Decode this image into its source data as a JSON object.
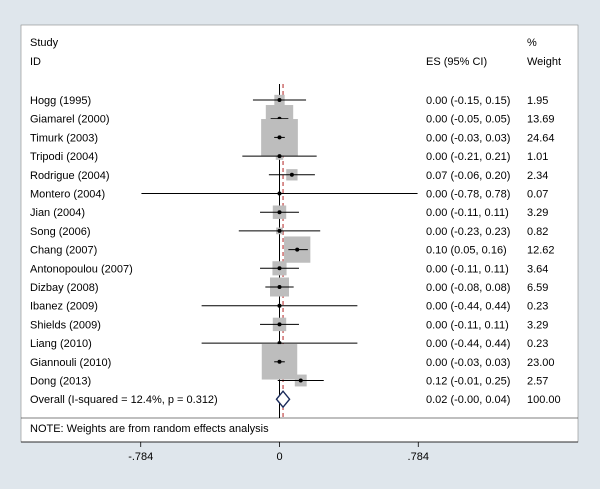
{
  "chart_data": {
    "type": "forest",
    "header": {
      "study_line1": "Study",
      "study_line2": "ID",
      "es_label": "ES (95% CI)",
      "weight_line1": "%",
      "weight_line2": "Weight"
    },
    "studies": [
      {
        "id": "Hogg (1995)",
        "es": 0.0,
        "lo": -0.15,
        "hi": 0.15,
        "es_text": "0.00 (-0.15, 0.15)",
        "weight": 1.95,
        "weight_text": "1.95"
      },
      {
        "id": "Giamarel (2000)",
        "es": 0.0,
        "lo": -0.05,
        "hi": 0.05,
        "es_text": "0.00 (-0.05, 0.05)",
        "weight": 13.69,
        "weight_text": "13.69"
      },
      {
        "id": "Timurk (2003)",
        "es": 0.0,
        "lo": -0.03,
        "hi": 0.03,
        "es_text": "0.00 (-0.03, 0.03)",
        "weight": 24.64,
        "weight_text": "24.64"
      },
      {
        "id": "Tripodi (2004)",
        "es": 0.0,
        "lo": -0.21,
        "hi": 0.21,
        "es_text": "0.00 (-0.21, 0.21)",
        "weight": 1.01,
        "weight_text": "1.01"
      },
      {
        "id": "Rodrigue (2004)",
        "es": 0.07,
        "lo": -0.06,
        "hi": 0.2,
        "es_text": "0.07 (-0.06, 0.20)",
        "weight": 2.34,
        "weight_text": "2.34"
      },
      {
        "id": "Montero (2004)",
        "es": 0.0,
        "lo": -0.78,
        "hi": 0.78,
        "es_text": "0.00 (-0.78, 0.78)",
        "weight": 0.07,
        "weight_text": "0.07"
      },
      {
        "id": "Jian (2004)",
        "es": 0.0,
        "lo": -0.11,
        "hi": 0.11,
        "es_text": "0.00 (-0.11, 0.11)",
        "weight": 3.29,
        "weight_text": "3.29"
      },
      {
        "id": "Song (2006)",
        "es": 0.0,
        "lo": -0.23,
        "hi": 0.23,
        "es_text": "0.00 (-0.23, 0.23)",
        "weight": 0.82,
        "weight_text": "0.82"
      },
      {
        "id": "Chang (2007)",
        "es": 0.1,
        "lo": 0.05,
        "hi": 0.16,
        "es_text": "0.10 (0.05, 0.16)",
        "weight": 12.62,
        "weight_text": "12.62"
      },
      {
        "id": "Antonopoulou (2007)",
        "es": 0.0,
        "lo": -0.11,
        "hi": 0.11,
        "es_text": "0.00 (-0.11, 0.11)",
        "weight": 3.64,
        "weight_text": "3.64"
      },
      {
        "id": "Dizbay (2008)",
        "es": 0.0,
        "lo": -0.08,
        "hi": 0.08,
        "es_text": "0.00 (-0.08, 0.08)",
        "weight": 6.59,
        "weight_text": "6.59"
      },
      {
        "id": "Ibanez (2009)",
        "es": 0.0,
        "lo": -0.44,
        "hi": 0.44,
        "es_text": "0.00 (-0.44, 0.44)",
        "weight": 0.23,
        "weight_text": "0.23"
      },
      {
        "id": "Shields (2009)",
        "es": 0.0,
        "lo": -0.11,
        "hi": 0.11,
        "es_text": "0.00 (-0.11, 0.11)",
        "weight": 3.29,
        "weight_text": "3.29"
      },
      {
        "id": "Liang (2010)",
        "es": 0.0,
        "lo": -0.44,
        "hi": 0.44,
        "es_text": "0.00 (-0.44, 0.44)",
        "weight": 0.23,
        "weight_text": "0.23"
      },
      {
        "id": "Giannouli (2010)",
        "es": 0.0,
        "lo": -0.03,
        "hi": 0.03,
        "es_text": "0.00 (-0.03, 0.03)",
        "weight": 23.0,
        "weight_text": "23.00"
      },
      {
        "id": "Dong (2013)",
        "es": 0.12,
        "lo": -0.01,
        "hi": 0.25,
        "es_text": "0.12 (-0.01, 0.25)",
        "weight": 2.57,
        "weight_text": "2.57"
      }
    ],
    "overall": {
      "label": "Overall  (I-squared = 12.4%, p = 0.312)",
      "es": 0.02,
      "lo": -0.0,
      "hi": 0.04,
      "es_text": "0.02 (-0.00, 0.04)",
      "weight_text": "100.00"
    },
    "note": "NOTE: Weights are from random effects analysis",
    "xlim": [
      -0.784,
      0.784
    ],
    "x_ticks": [
      {
        "value": -0.784,
        "label": "-.784"
      },
      {
        "value": 0,
        "label": "0"
      },
      {
        "value": 0.784,
        "label": ".784"
      }
    ],
    "null_line": 0,
    "colors": {
      "background": "#dfe6ec",
      "panel": "#ffffff",
      "weight_box": "#bdbdbd",
      "overall_line": "#b22222",
      "diamond": "#1a2a5a"
    }
  }
}
